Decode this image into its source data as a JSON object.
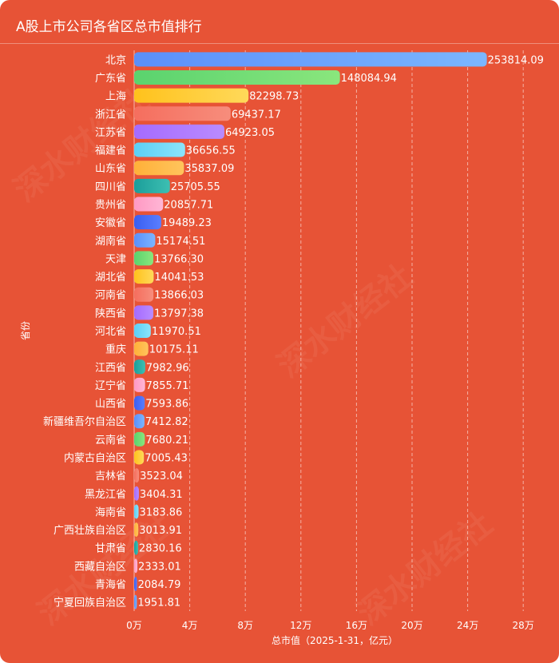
{
  "title": "A股上市公司各省区总市值排行",
  "watermark": "深水财经社",
  "colors": {
    "background": "#E75336",
    "text": "#FFFFFF",
    "grid": "rgba(255,255,255,0.55)"
  },
  "chart_data": {
    "type": "bar",
    "orientation": "horizontal",
    "title": "A股上市公司各省区总市值排行",
    "xlabel": "总市值（2025-1-31，亿元）",
    "ylabel": "省份",
    "xlim": [
      0,
      300000
    ],
    "x_ticks": [
      {
        "value": 0,
        "label": "0万"
      },
      {
        "value": 40000,
        "label": "4万"
      },
      {
        "value": 80000,
        "label": "8万"
      },
      {
        "value": 120000,
        "label": "12万"
      },
      {
        "value": 160000,
        "label": "16万"
      },
      {
        "value": 200000,
        "label": "20万"
      },
      {
        "value": 240000,
        "label": "24万"
      },
      {
        "value": 280000,
        "label": "28万"
      }
    ],
    "grid": "vertical dashed",
    "categories": [
      "北京",
      "广东省",
      "上海",
      "浙江省",
      "江苏省",
      "福建省",
      "山东省",
      "四川省",
      "贵州省",
      "安徽省",
      "湖南省",
      "天津",
      "湖北省",
      "河南省",
      "陕西省",
      "河北省",
      "重庆",
      "江西省",
      "辽宁省",
      "山西省",
      "新疆维吾尔自治区",
      "云南省",
      "内蒙古自治区",
      "吉林省",
      "黑龙江省",
      "海南省",
      "广西壮族自治区",
      "甘肃省",
      "西藏自治区",
      "青海省",
      "宁夏回族自治区"
    ],
    "values": [
      253814.09,
      148084.94,
      82298.73,
      69437.17,
      64923.05,
      36656.55,
      35837.09,
      25705.55,
      20857.71,
      19489.23,
      15174.51,
      13766.3,
      14041.53,
      13866.03,
      13797.38,
      11970.51,
      10175.11,
      7982.96,
      7855.71,
      7593.86,
      7412.82,
      7680.21,
      7005.43,
      3523.04,
      3404.31,
      3183.86,
      3013.91,
      2830.16,
      2333.01,
      2084.79,
      1951.81
    ],
    "value_labels": [
      "253814.09",
      "148084.94",
      "82298.73",
      "69437.17",
      "64923.05",
      "36656.55",
      "35837.09",
      "25705.55",
      "20857.71",
      "19489.23",
      "15174.51",
      "13766.30",
      "14041.53",
      "13866.03",
      "13797.38",
      "11970.51",
      "10175.11",
      "7982.96",
      "7855.71",
      "7593.86",
      "7412.82",
      "7680.21",
      "7005.43",
      "3523.04",
      "3404.31",
      "3183.86",
      "3013.91",
      "2830.16",
      "2333.01",
      "2084.79",
      "1951.81"
    ],
    "bar_colors": [
      [
        "#5B8FF9",
        "#7BB6FF"
      ],
      [
        "#5AD36E",
        "#8AE67D"
      ],
      [
        "#FFC21C",
        "#FFD95A"
      ],
      [
        "#F56E5E",
        "#F78D7C"
      ],
      [
        "#A56BFF",
        "#B98BFF"
      ],
      [
        "#5CCFF5",
        "#8BE4FB"
      ],
      [
        "#FFB039",
        "#FFC45C"
      ],
      [
        "#1B9E9A",
        "#3DBFB2"
      ],
      [
        "#FF99C3",
        "#FFB6D5"
      ],
      [
        "#3A5EF0",
        "#5A7EFF"
      ]
    ]
  }
}
